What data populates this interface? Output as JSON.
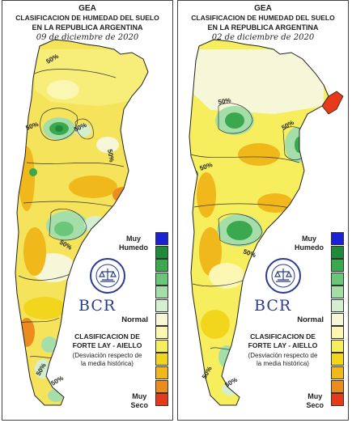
{
  "maps": [
    {
      "org": "GEA",
      "title_line1": "CLASIFICACION DE HUMEDAD DEL SUELO",
      "title_line2": "EN LA REPUBLICA ARGENTINA",
      "date": "09 de diciembre de 2020",
      "contour_labels": [
        "50%",
        "50%",
        "50%",
        "50%",
        "50%",
        "50%",
        "50%"
      ]
    },
    {
      "org": "GEA",
      "title_line1": "CLASIFICACION DE HUMEDAD DEL SUELO",
      "title_line2": "EN LA REPUBLICA ARGENTINA",
      "date": "02 de diciembre de 2020",
      "contour_labels": [
        "50%",
        "50%",
        "50%",
        "50%",
        "50%",
        "50%"
      ]
    }
  ],
  "legend": {
    "top_line1": "Muy",
    "top_line2": "Humedo",
    "middle": "Normal",
    "bottom_line1": "Muy",
    "bottom_line2": "Seco",
    "colors": [
      "#1a22d4",
      "#1e8a3a",
      "#3aa84e",
      "#6cc67a",
      "#a6deaa",
      "#d4efd0",
      "#f6f6d8",
      "#fbf6b2",
      "#f6ee5c",
      "#f2d61e",
      "#f0b81a",
      "#ec8c1e",
      "#e83a1a"
    ]
  },
  "brand": {
    "logo_text": "BCR",
    "logo_ring_text": "BOLSA DE COMERCIO DE ROSARIO"
  },
  "method": {
    "line1": "CLASIFICACION DE",
    "line2": "FORTE LAY - AIELLO",
    "sub1": "(Desviación respecto de",
    "sub2": "la media histórica)"
  }
}
